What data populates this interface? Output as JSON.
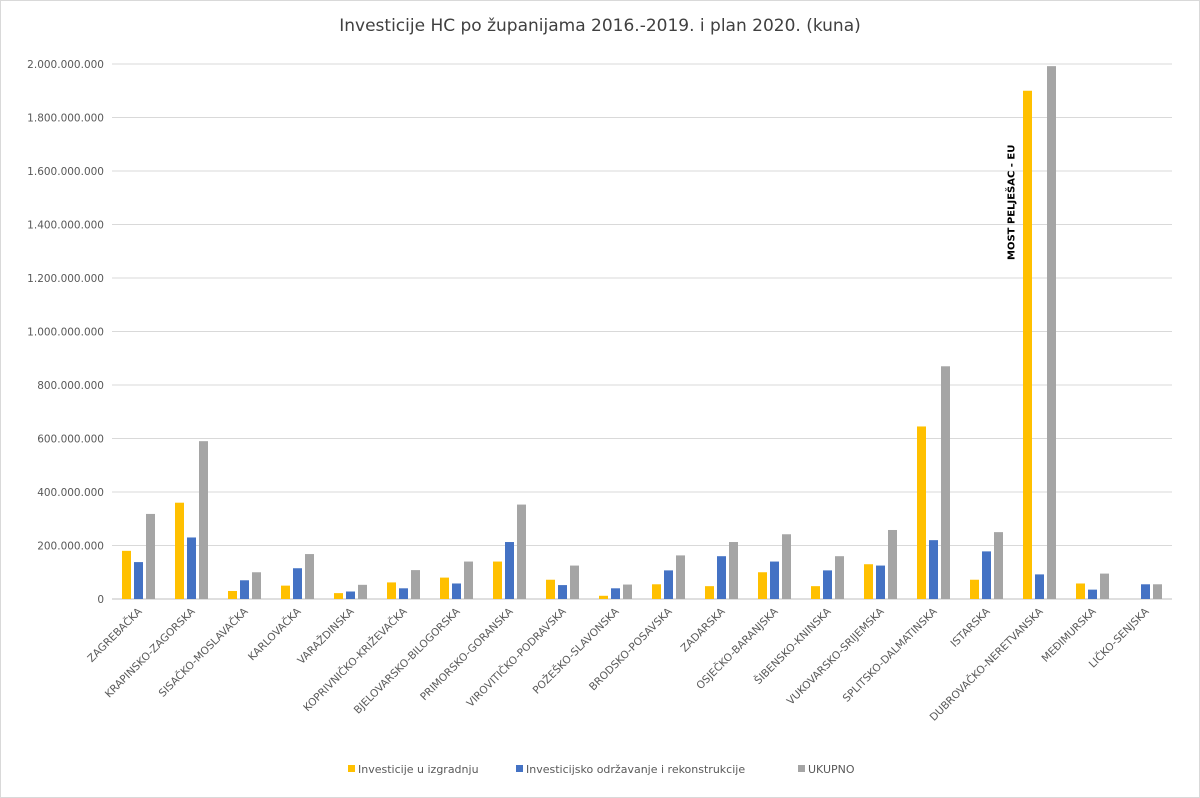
{
  "chart_data": {
    "type": "bar",
    "title": "Investicije HC po županijama 2016.-2019. i plan 2020. (kuna)",
    "xlabel": "",
    "ylabel": "",
    "ylim": [
      0,
      2000000000
    ],
    "yticks": [
      "0",
      "200.000.000",
      "400.000.000",
      "600.000.000",
      "800.000.000",
      "1.000.000.000",
      "1.200.000.000",
      "1.400.000.000",
      "1.600.000.000",
      "1.800.000.000",
      "2.000.000.000"
    ],
    "grid": true,
    "legend_position": "bottom",
    "categories": [
      "ZAGREBAČKA",
      "KRAPINSKO-ZAGORSKA",
      "SISAČKO-MOSLAVAČKA",
      "KARLOVAČKA",
      "VARAŽDINSKA",
      "KOPRIVNIČKO-KRIŽEVAČKA",
      "BJELOVARSKO-BILOGORSKA",
      "PRIMORSKO-GORANSKA",
      "VIROVITIČKO-PODRAVSKA",
      "POŽEŠKO-SLAVONSKA",
      "BRODSKO-POSAVSKA",
      "ZADARSKA",
      "OSJEČKO-BARANJSKA",
      "ŠIBENSKO-KNINSKA",
      "VUKOVARSKO-SRIJEMSKA",
      "SPLITSKO-DALMATINSKA",
      "ISTARSKA",
      "DUBROVAČKO-NERETVANSKA",
      "MEĐIMURSKA",
      "LIČKO-SENJSKA"
    ],
    "series": [
      {
        "name": "Investicije u izgradnju",
        "color": "#FFC000",
        "values": [
          180000000,
          360000000,
          30000000,
          50000000,
          22000000,
          62000000,
          80000000,
          140000000,
          72000000,
          12000000,
          55000000,
          48000000,
          100000000,
          48000000,
          130000000,
          645000000,
          72000000,
          1900000000,
          58000000,
          0
        ]
      },
      {
        "name": "Investicijsko održavanje i rekonstrukcije",
        "color": "#4472C4",
        "values": [
          138000000,
          230000000,
          70000000,
          115000000,
          28000000,
          40000000,
          58000000,
          213000000,
          52000000,
          40000000,
          107000000,
          160000000,
          140000000,
          107000000,
          125000000,
          220000000,
          178000000,
          92000000,
          35000000,
          55000000
        ]
      },
      {
        "name": "UKUPNO",
        "color": "#A5A5A5",
        "values": [
          318000000,
          590000000,
          100000000,
          168000000,
          53000000,
          108000000,
          140000000,
          353000000,
          125000000,
          54000000,
          163000000,
          213000000,
          242000000,
          160000000,
          258000000,
          870000000,
          250000000,
          1992000000,
          95000000,
          55000000
        ]
      }
    ],
    "annotations": [
      {
        "text": "MOST PELJEŠAC - EU",
        "category": "DUBROVAČKO-NERETVANSKA"
      }
    ]
  }
}
